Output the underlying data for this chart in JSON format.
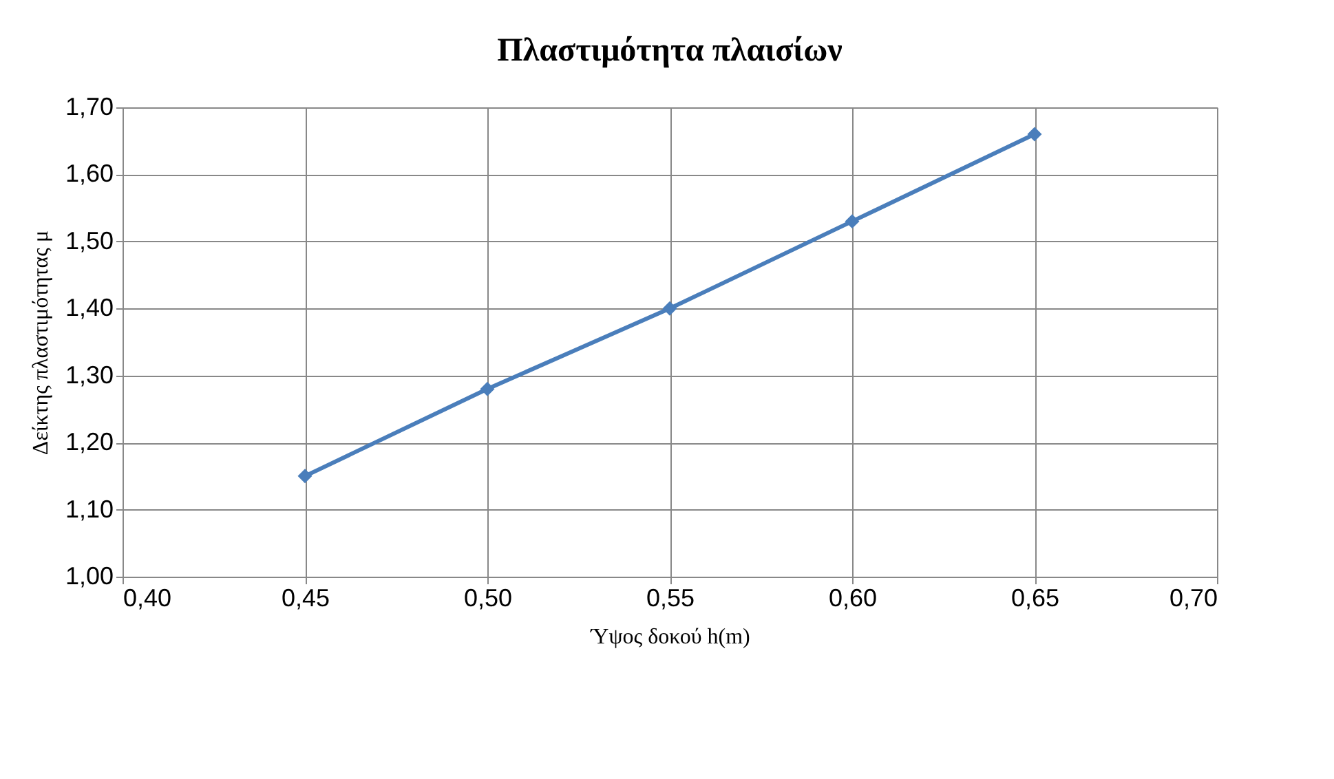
{
  "chart_data": {
    "type": "line",
    "title": "Πλαστιμότητα πλαισίων",
    "xlabel": "Ύψος δοκού h(m)",
    "ylabel": "Δείκτης πλαστιμότητας μ",
    "x": [
      0.45,
      0.5,
      0.55,
      0.6,
      0.65
    ],
    "series": [
      {
        "color": "#4a7ebb",
        "values": [
          1.15,
          1.28,
          1.4,
          1.53,
          1.66
        ]
      }
    ],
    "xlim": [
      0.4,
      0.7
    ],
    "xticks": [
      {
        "value": 0.4,
        "label": "0,40"
      },
      {
        "value": 0.45,
        "label": "0,45"
      },
      {
        "value": 0.5,
        "label": "0,50"
      },
      {
        "value": 0.55,
        "label": "0,55"
      },
      {
        "value": 0.6,
        "label": "0,60"
      },
      {
        "value": 0.65,
        "label": "0,65"
      },
      {
        "value": 0.7,
        "label": "0,70"
      }
    ],
    "ylim": [
      1.0,
      1.7
    ],
    "yticks": [
      {
        "value": 1.0,
        "label": "1,00"
      },
      {
        "value": 1.1,
        "label": "1,10"
      },
      {
        "value": 1.2,
        "label": "1,20"
      },
      {
        "value": 1.3,
        "label": "1,30"
      },
      {
        "value": 1.4,
        "label": "1,40"
      },
      {
        "value": 1.5,
        "label": "1,50"
      },
      {
        "value": 1.6,
        "label": "1,60"
      },
      {
        "value": 1.7,
        "label": "1,70"
      }
    ],
    "grid": true,
    "marker": "diamond",
    "line_style": "solid"
  }
}
